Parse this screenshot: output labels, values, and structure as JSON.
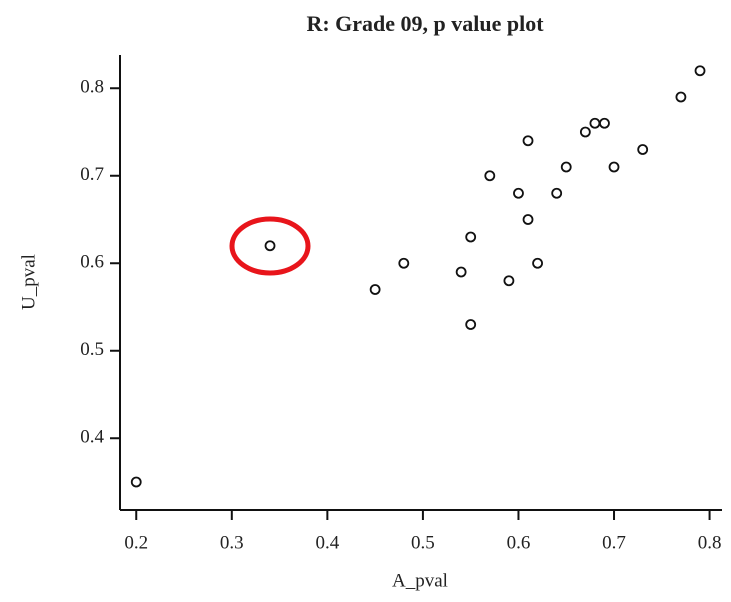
{
  "chart_data": {
    "type": "scatter",
    "title": "R: Grade 09, p value plot",
    "x_label": "A_pval",
    "y_label": "U_pval",
    "series": [
      {
        "name": "points",
        "color": "#111111",
        "x": [
          0.2,
          0.34,
          0.45,
          0.48,
          0.54,
          0.55,
          0.55,
          0.57,
          0.59,
          0.6,
          0.61,
          0.61,
          0.62,
          0.64,
          0.65,
          0.67,
          0.68,
          0.69,
          0.7,
          0.73,
          0.77,
          0.79
        ],
        "values": [
          0.35,
          0.62,
          0.57,
          0.6,
          0.59,
          0.63,
          0.53,
          0.7,
          0.58,
          0.68,
          0.74,
          0.65,
          0.6,
          0.68,
          0.71,
          0.75,
          0.76,
          0.76,
          0.71,
          0.73,
          0.79,
          0.82
        ]
      }
    ],
    "xlim": [
      0.183,
      0.813
    ],
    "ylim": [
      0.318,
      0.838
    ],
    "xticks": [
      0.2,
      0.3,
      0.4,
      0.5,
      0.6,
      0.7,
      0.8
    ],
    "yticks": [
      0.4,
      0.5,
      0.6,
      0.7,
      0.8
    ],
    "grid": false
  }
}
